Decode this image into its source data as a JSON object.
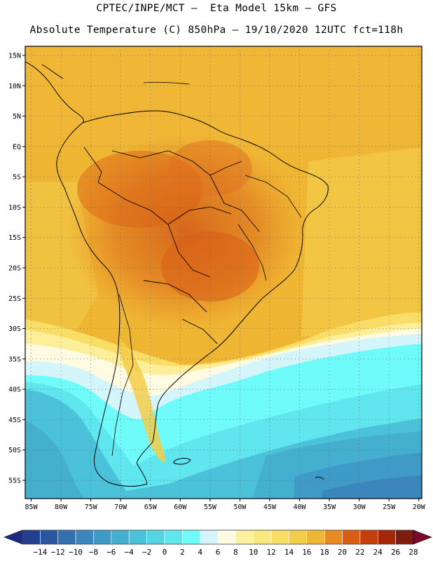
{
  "header": {
    "line1": "CPTEC/INPE/MCT –  Eta Model 15km – GFS",
    "line2": "Absolute Temperature (C) 850hPa – 19/10/2020 12UTC fct=118h"
  },
  "map": {
    "lat_labels": [
      "15N",
      "10N",
      "5N",
      "EQ",
      "5S",
      "10S",
      "15S",
      "20S",
      "25S",
      "30S",
      "35S",
      "40S",
      "45S",
      "50S",
      "55S"
    ],
    "lat_values": [
      15,
      10,
      5,
      0,
      -5,
      -10,
      -15,
      -20,
      -25,
      -30,
      -35,
      -40,
      -45,
      -50,
      -55
    ],
    "lon_labels": [
      "85W",
      "80W",
      "75W",
      "70W",
      "65W",
      "60W",
      "55W",
      "50W",
      "45W",
      "40W",
      "35W",
      "30W",
      "25W",
      "20W"
    ],
    "lon_values": [
      -85,
      -80,
      -75,
      -70,
      -65,
      -60,
      -55,
      -50,
      -45,
      -40,
      -35,
      -30,
      -25,
      -20
    ],
    "lat_range": [
      -58,
      16.5
    ],
    "lon_range": [
      -86,
      -19.5
    ]
  },
  "colorbar": {
    "labels": [
      "-14",
      "-12",
      "-10",
      "-8",
      "-6",
      "-4",
      "-2",
      "0",
      "2",
      "4",
      "6",
      "8",
      "10",
      "12",
      "14",
      "16",
      "18",
      "20",
      "22",
      "24",
      "26",
      "28"
    ],
    "colors": [
      "#223f8f",
      "#2a55a0",
      "#3370b0",
      "#3a86bd",
      "#3f9bc6",
      "#44afcf",
      "#4bc2da",
      "#55d4e4",
      "#5fe6ee",
      "#70fbfb",
      "#d4f6fb",
      "#fefbe2",
      "#fdf1a0",
      "#fbe880",
      "#f8dd66",
      "#f3cc4a",
      "#efb633",
      "#e68b22",
      "#d95d15",
      "#c43e0c",
      "#a52708",
      "#7d1d10"
    ],
    "under_color": "#1c2a80",
    "over_color": "#7a0a2a"
  }
}
